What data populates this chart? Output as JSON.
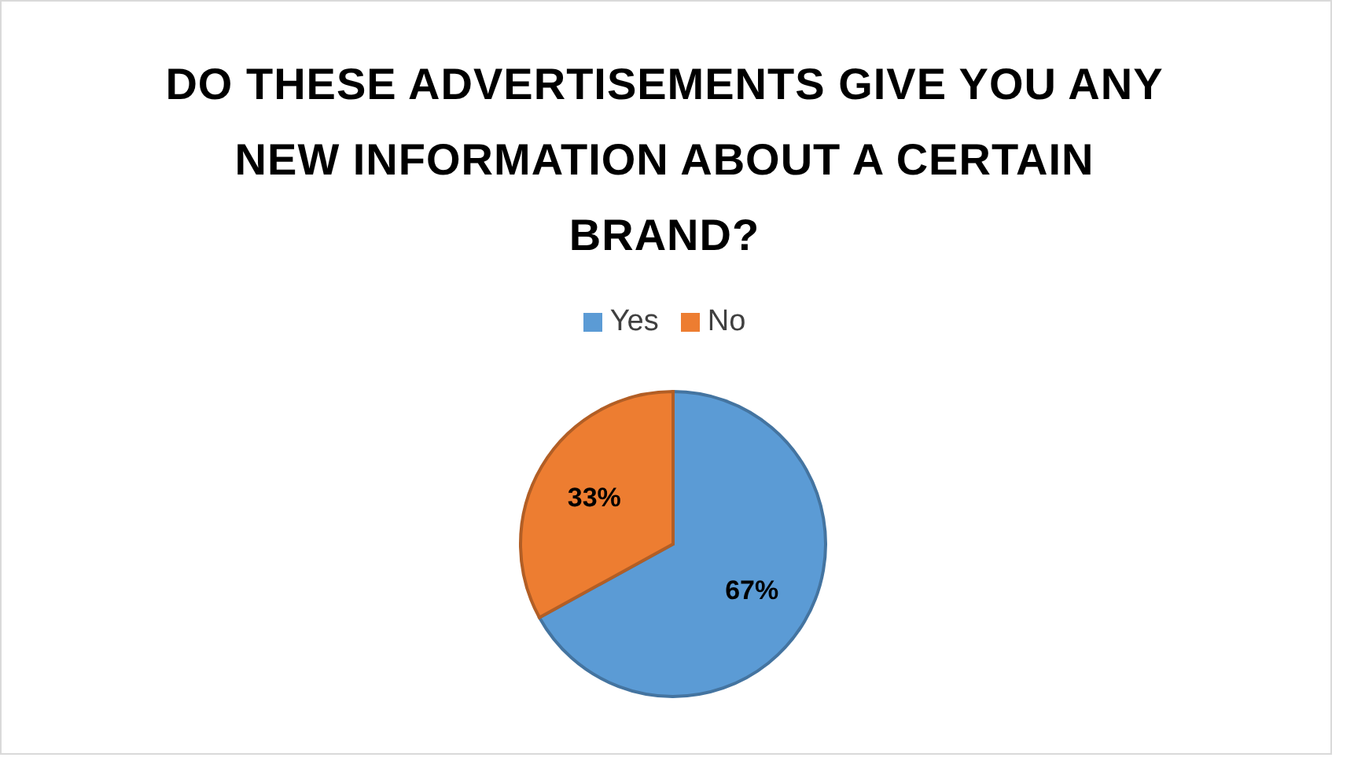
{
  "chart_data": {
    "type": "pie",
    "title": "DO THESE ADVERTISEMENTS GIVE YOU ANY NEW INFORMATION ABOUT A CERTAIN BRAND?",
    "categories": [
      "Yes",
      "No"
    ],
    "values": [
      67,
      33
    ],
    "colors": [
      "#5b9bd5",
      "#ed7d31"
    ],
    "value_labels": [
      "67%",
      "33%"
    ],
    "legend": "top"
  }
}
